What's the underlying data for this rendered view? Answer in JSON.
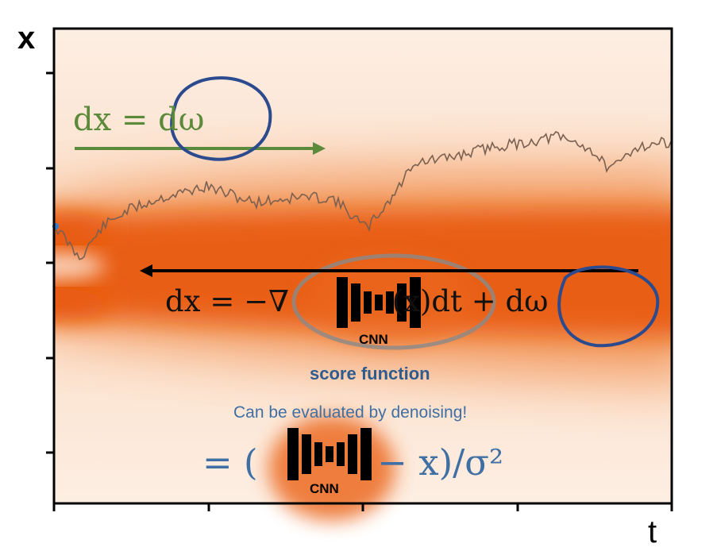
{
  "axes": {
    "y_label": "x",
    "x_label": "t"
  },
  "equations": {
    "forward": "dx = dω",
    "reverse": "dx = −∇ [CNN](x)dt + dω",
    "denoising": "= ( [CNN] − x)/σ²"
  },
  "labels": {
    "cnn": "CNN",
    "score_function": "score function",
    "denoising_note": "Can be evaluated by denoising!"
  },
  "colors": {
    "density": "#e8580e",
    "forward_arrow": "#5a8a3a",
    "reverse_arrow": "#000000",
    "highlight_circle": "#2c4a8e",
    "trajectory": "#7a6050"
  }
}
